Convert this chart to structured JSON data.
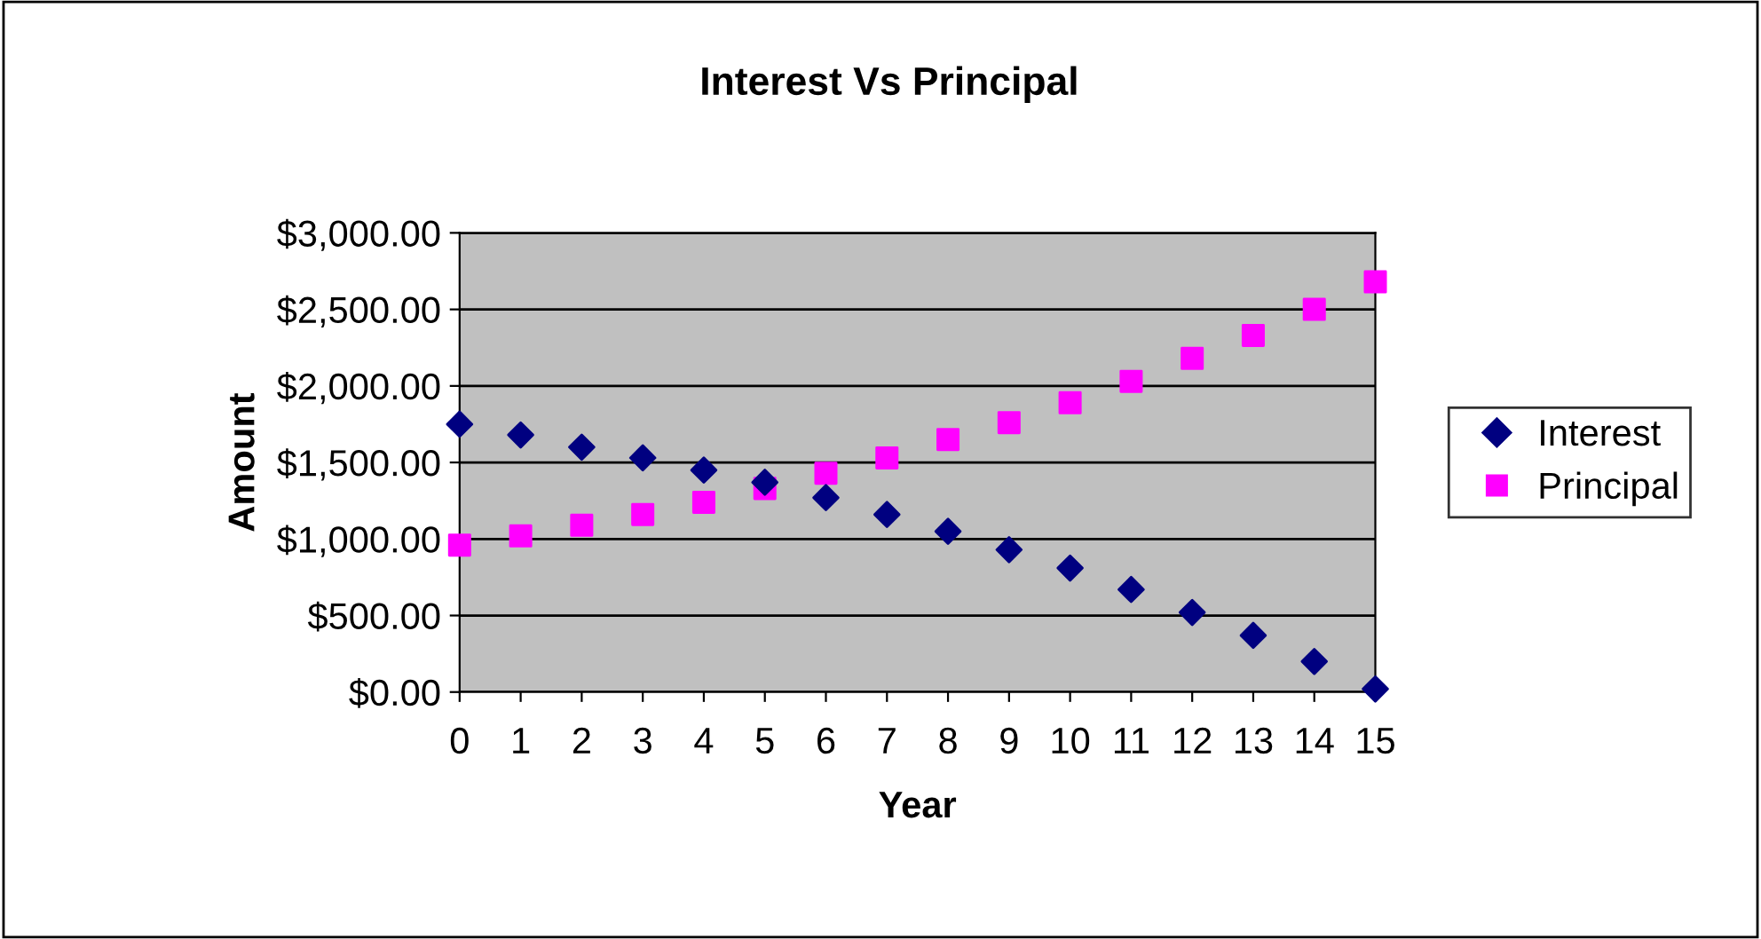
{
  "chart_data": {
    "type": "scatter",
    "title": "Interest Vs Principal",
    "xlabel": "Year",
    "ylabel": "Amount",
    "categories": [
      "0",
      "1",
      "2",
      "3",
      "4",
      "5",
      "6",
      "7",
      "8",
      "9",
      "10",
      "11",
      "12",
      "13",
      "14",
      "15"
    ],
    "series": [
      {
        "name": "Interest",
        "color": "#000080",
        "marker": "diamond",
        "values": [
          1750,
          1680,
          1600,
          1530,
          1450,
          1370,
          1270,
          1160,
          1050,
          930,
          810,
          670,
          520,
          370,
          200,
          20
        ]
      },
      {
        "name": "Principal",
        "color": "#ff00ff",
        "marker": "square",
        "values": [
          960,
          1020,
          1090,
          1160,
          1240,
          1330,
          1430,
          1530,
          1650,
          1760,
          1890,
          2030,
          2180,
          2330,
          2500,
          2680
        ]
      }
    ],
    "ylim": [
      0,
      3000
    ],
    "yticks": [
      {
        "value": 0,
        "label": "$0.00"
      },
      {
        "value": 500,
        "label": "$500.00"
      },
      {
        "value": 1000,
        "label": "$1,000.00"
      },
      {
        "value": 1500,
        "label": "$1,500.00"
      },
      {
        "value": 2000,
        "label": "$2,000.00"
      },
      {
        "value": 2500,
        "label": "$2,500.00"
      },
      {
        "value": 3000,
        "label": "$3,000.00"
      }
    ],
    "grid": "y",
    "legend": "right"
  }
}
